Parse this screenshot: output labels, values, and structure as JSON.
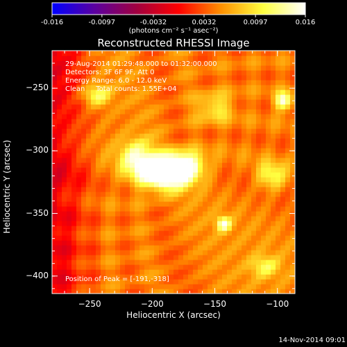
{
  "chart_data": {
    "type": "heatmap",
    "title": "Reconstructed RHESSI Image",
    "xlabel": "Heliocentric X (arcsec)",
    "ylabel": "Heliocentric Y (arcsec)",
    "xlim": [
      -280,
      -86
    ],
    "ylim": [
      -414,
      -220
    ],
    "x_ticks": [
      -250,
      -200,
      -150,
      -100
    ],
    "y_ticks": [
      -250,
      -300,
      -350,
      -400
    ],
    "colorbar": {
      "range": [
        -0.016,
        0.016
      ],
      "tick_labels": [
        "-0.016",
        "-0.0097",
        "-0.0032",
        "0.0032",
        "0.0097",
        "0.016"
      ],
      "unit_label": "(photons cm⁻² s⁻¹ asec⁻²)"
    },
    "annotations": [
      "29-Aug-2014 01:29:48.000 to 01:32:00.000",
      "Detectors: 3F 6F 9F, Att 0",
      "Energy Range: 6.0 - 12.0 keV",
      "Clean     Total counts: 1.55E+04"
    ],
    "peak_label": "Position of Peak = [-191,-318]",
    "peak": [
      -191,
      -318
    ],
    "sources": [
      {
        "x": -191,
        "y": -318,
        "value": 0.016,
        "sx": 14,
        "sy": 9
      },
      {
        "x": -175,
        "y": -312,
        "value": 0.012,
        "sx": 12,
        "sy": 8
      },
      {
        "x": -212,
        "y": -305,
        "value": 0.009,
        "sx": 10,
        "sy": 10
      },
      {
        "x": -245,
        "y": -255,
        "value": 0.008,
        "sx": 8,
        "sy": 6
      },
      {
        "x": -143,
        "y": -358,
        "value": 0.011,
        "sx": 4,
        "sy": 4
      },
      {
        "x": -95,
        "y": -260,
        "value": 0.011,
        "sx": 5,
        "sy": 5
      },
      {
        "x": -105,
        "y": -320,
        "value": 0.007,
        "sx": 8,
        "sy": 8
      },
      {
        "x": -110,
        "y": -392,
        "value": 0.006,
        "sx": 8,
        "sy": 6
      },
      {
        "x": -150,
        "y": -265,
        "value": 0.006,
        "sx": 10,
        "sy": 8
      }
    ],
    "background_level": 0.0045,
    "colormap": [
      "#0000ff",
      "#5a00a0",
      "#a00040",
      "#ff0000",
      "#ff9000",
      "#ffff40",
      "#ffffff"
    ]
  },
  "footer": {
    "timestamp": "14-Nov-2014 09:01"
  }
}
